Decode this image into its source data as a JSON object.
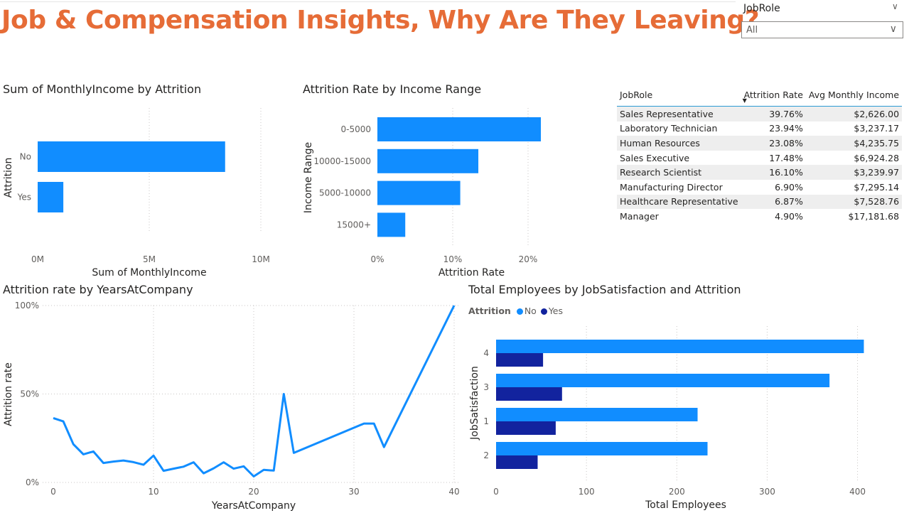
{
  "header": {
    "title": "Job & Compensation Insights, Why Are They Leaving?"
  },
  "slicer": {
    "label": "JobRole",
    "value": "All"
  },
  "colors": {
    "title": "#E66C37",
    "bar_primary": "#118DFF",
    "bar_dark": "#12239E",
    "line": "#118DFF"
  },
  "table": {
    "columns": [
      "JobRole",
      "Attrition Rate",
      "Avg Monthly Income"
    ],
    "sorted_column": "Attrition Rate",
    "rows": [
      [
        "Sales Representative",
        "39.76%",
        "$2,626.00"
      ],
      [
        "Laboratory Technician",
        "23.94%",
        "$3,237.17"
      ],
      [
        "Human Resources",
        "23.08%",
        "$4,235.75"
      ],
      [
        "Sales Executive",
        "17.48%",
        "$6,924.28"
      ],
      [
        "Research Scientist",
        "16.10%",
        "$3,239.97"
      ],
      [
        "Manufacturing Director",
        "6.90%",
        "$7,295.14"
      ],
      [
        "Healthcare Representative",
        "6.87%",
        "$7,528.76"
      ],
      [
        "Manager",
        "4.90%",
        "$17,181.68"
      ]
    ]
  },
  "chart_data": [
    {
      "id": "income_by_attrition",
      "type": "bar",
      "orientation": "horizontal",
      "title": "Sum of MonthlyIncome by Attrition",
      "xlabel": "Sum of MonthlyIncome",
      "ylabel": "Attrition",
      "categories": [
        "No",
        "Yes"
      ],
      "values": [
        8400000,
        1150000
      ],
      "xlim": [
        0,
        10000000
      ],
      "xticks": [
        0,
        5000000,
        10000000
      ],
      "xtick_labels": [
        "0M",
        "5M",
        "10M"
      ],
      "grid": true
    },
    {
      "id": "attrition_by_income_range",
      "type": "bar",
      "orientation": "horizontal",
      "title": "Attrition Rate by Income Range",
      "xlabel": "Attrition Rate",
      "ylabel": "Income Range",
      "categories": [
        "0-5000",
        "10000-15000",
        "5000-10000",
        "15000+"
      ],
      "values": [
        21.7,
        13.4,
        11.0,
        3.7
      ],
      "xlim": [
        0,
        25
      ],
      "xticks": [
        0,
        10,
        20
      ],
      "xtick_labels": [
        "0%",
        "10%",
        "20%"
      ],
      "grid": true
    },
    {
      "id": "attrition_by_years",
      "type": "line",
      "title": "Attrition rate by YearsAtCompany",
      "xlabel": "YearsAtCompany",
      "ylabel": "Attrition rate",
      "x": [
        0,
        1,
        2,
        3,
        4,
        5,
        6,
        7,
        8,
        9,
        10,
        11,
        12,
        13,
        14,
        15,
        16,
        17,
        18,
        19,
        20,
        21,
        22,
        23,
        24,
        31,
        32,
        33,
        40
      ],
      "y": [
        36.4,
        34.5,
        21.6,
        15.9,
        17.5,
        11.0,
        11.8,
        12.4,
        11.5,
        10.0,
        15.2,
        6.6,
        7.8,
        8.9,
        11.4,
        5.2,
        8.0,
        11.4,
        7.8,
        9.1,
        3.4,
        7.1,
        6.7,
        50.0,
        16.7,
        33.3,
        33.3,
        20.0,
        100.0
      ],
      "xlim": [
        0,
        40
      ],
      "ylim": [
        0,
        100
      ],
      "xticks": [
        0,
        10,
        20,
        30,
        40
      ],
      "yticks": [
        0,
        50,
        100
      ],
      "ytick_labels": [
        "0%",
        "50%",
        "100%"
      ],
      "grid": true
    },
    {
      "id": "employees_by_jobsatisfaction",
      "type": "bar",
      "orientation": "horizontal",
      "title": "Total Employees by JobSatisfaction and Attrition",
      "xlabel": "Total Employees",
      "ylabel": "JobSatisfaction",
      "legend_title": "Attrition",
      "legend_position": "top-left",
      "categories": [
        "4",
        "3",
        "1",
        "2"
      ],
      "series": [
        {
          "name": "No",
          "values": [
            407,
            369,
            223,
            234
          ]
        },
        {
          "name": "Yes",
          "values": [
            52,
            73,
            66,
            46
          ]
        }
      ],
      "xlim": [
        0,
        420
      ],
      "xticks": [
        0,
        100,
        200,
        300,
        400
      ],
      "grid": true
    }
  ]
}
